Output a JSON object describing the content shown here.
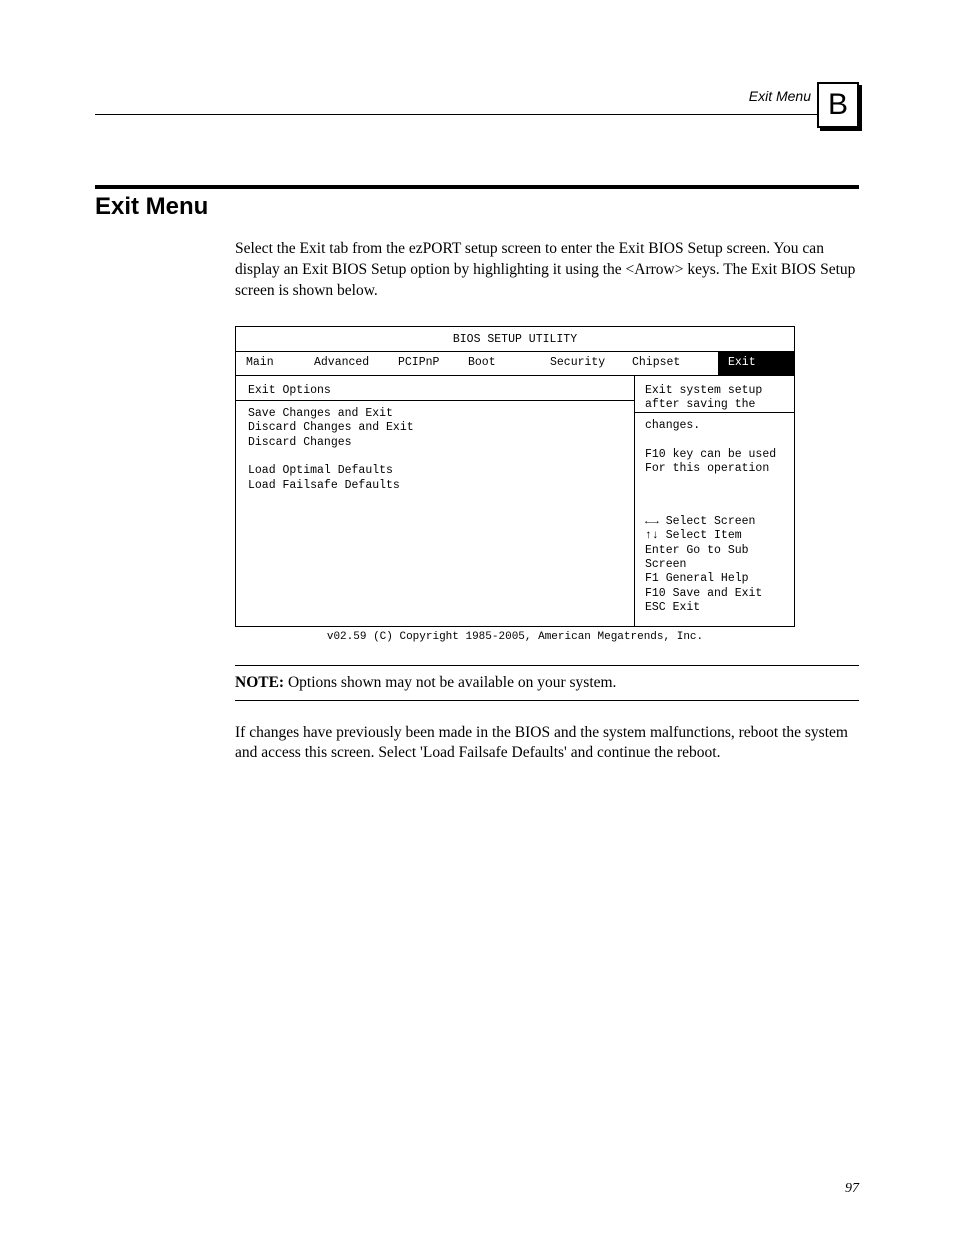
{
  "header": {
    "running_head": "Exit Menu",
    "appendix_letter": "B"
  },
  "section": {
    "title": "Exit Menu",
    "intro": "Select the Exit tab from the ezPORT setup screen to enter the Exit BIOS Setup screen. You can display an Exit BIOS Setup option by highlighting it using the <Arrow> keys. The Exit BIOS Setup screen is shown below."
  },
  "bios": {
    "title": "BIOS SETUP UTILITY",
    "tabs": {
      "main": "Main",
      "advanced": "Advanced",
      "pcipnp": "PCIPnP",
      "boot": "Boot",
      "security": "Security",
      "chipset": "Chipset",
      "exit": "Exit"
    },
    "left": {
      "heading": "Exit Options",
      "items": {
        "save_exit": "Save Changes and Exit",
        "discard_exit": "Discard Changes and Exit",
        "discard": "Discard Changes",
        "load_optimal": "Load Optimal Defaults",
        "load_failsafe": "Load Failsafe Defaults"
      }
    },
    "right": {
      "help1": "Exit system setup",
      "help2": "after saving the",
      "help3": "changes.",
      "help4": "F10 key can be used",
      "help5": "For this operation",
      "nav1": "←→ Select Screen",
      "nav2": "↑↓ Select Item",
      "nav3": "Enter Go to Sub",
      "nav4": "Screen",
      "nav5": "F1 General Help",
      "nav6": "F10 Save and Exit",
      "nav7": "ESC Exit"
    },
    "footer": "v02.59 (C) Copyright 1985-2005, American Megatrends, Inc."
  },
  "note": {
    "label": "NOTE:",
    "text": " Options shown may not be available on your system."
  },
  "closing": "If changes have previously been made in the BIOS and the system malfunctions, reboot the system and access this screen. Select 'Load Failsafe Defaults' and continue the reboot.",
  "page_number": "97"
}
